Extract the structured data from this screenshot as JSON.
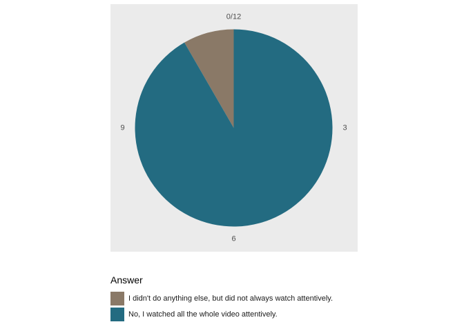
{
  "chart_data": {
    "type": "pie",
    "title": "",
    "categories": [
      "I didn't do anything else, but did not always watch attentively.",
      "No, I watched all the whole video attentively."
    ],
    "values": [
      1,
      11
    ],
    "colors": [
      "#8a7967",
      "#236b81"
    ],
    "panel_background": "#ebebeb",
    "angle_axis": {
      "min": 0,
      "max": 12,
      "tick_values": [
        0,
        3,
        6,
        9
      ],
      "tick_labels": [
        "0/12",
        "3",
        "6",
        "9"
      ]
    },
    "legend": {
      "title": "Answer",
      "position": "bottom",
      "entries": [
        "I didn't do anything else, but did not always watch attentively.",
        "No, I watched all the whole video attentively."
      ]
    },
    "grid": false
  }
}
